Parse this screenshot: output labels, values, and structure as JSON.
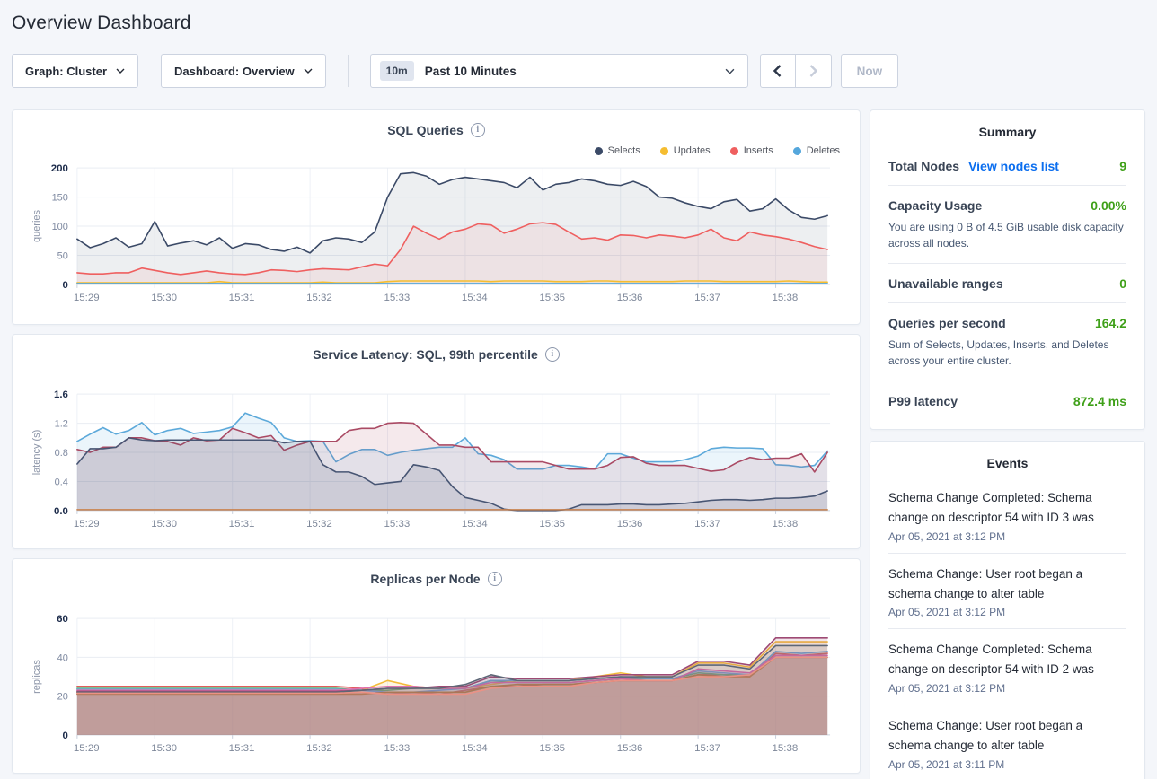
{
  "page": {
    "title": "Overview Dashboard"
  },
  "icons": {
    "info": "i"
  },
  "toolbar": {
    "graph_dropdown": "Graph: Cluster",
    "dashboard_dropdown": "Dashboard: Overview",
    "time_badge": "10m",
    "time_label": "Past 10 Minutes",
    "now_button": "Now"
  },
  "summary": {
    "title": "Summary",
    "rows": [
      {
        "label": "Total Nodes",
        "link": "View nodes list",
        "value": "9"
      },
      {
        "label": "Capacity Usage",
        "value": "0.00%",
        "desc": "You are using 0 B of 4.5 GiB usable disk capacity across all nodes."
      },
      {
        "label": "Unavailable ranges",
        "value": "0"
      },
      {
        "label": "Queries per second",
        "value": "164.2",
        "desc": "Sum of Selects, Updates, Inserts, and Deletes across your entire cluster."
      },
      {
        "label": "P99 latency",
        "value": "872.4 ms"
      }
    ]
  },
  "events": {
    "title": "Events",
    "items": [
      {
        "message": "Schema Change Completed: Schema change on descriptor 54 with ID 3 was",
        "time": "Apr 05, 2021 at 3:12 PM"
      },
      {
        "message": "Schema Change: User root began a schema change to alter table",
        "time": "Apr 05, 2021 at 3:12 PM"
      },
      {
        "message": "Schema Change Completed: Schema change on descriptor 54 with ID 2 was",
        "time": "Apr 05, 2021 at 3:12 PM"
      },
      {
        "message": "Schema Change: User root began a schema change to alter table",
        "time": "Apr 05, 2021 at 3:11 PM"
      }
    ]
  },
  "chart_data": [
    {
      "id": "sql-queries",
      "type": "area",
      "title": "SQL Queries",
      "ylabel": "queries",
      "ylim": [
        0,
        200
      ],
      "yticks": [
        {
          "v": 0,
          "label": "0",
          "bold": true
        },
        {
          "v": 50,
          "label": "50"
        },
        {
          "v": 100,
          "label": "100"
        },
        {
          "v": 150,
          "label": "150"
        },
        {
          "v": 200,
          "label": "200",
          "bold": true
        }
      ],
      "x_ticks": [
        "15:29",
        "15:30",
        "15:31",
        "15:32",
        "15:33",
        "15:34",
        "15:35",
        "15:36",
        "15:37",
        "15:38"
      ],
      "duration_s": 582,
      "dt": 10,
      "legend": true,
      "series": [
        {
          "name": "Selects",
          "color": "#3b4a67",
          "fill_opacity": 0.09,
          "values": [
            78,
            63,
            70,
            80,
            64,
            70,
            108,
            66,
            71,
            75,
            68,
            80,
            62,
            70,
            68,
            60,
            57,
            64,
            54,
            75,
            80,
            78,
            72,
            90,
            150,
            190,
            192,
            186,
            172,
            180,
            184,
            181,
            178,
            175,
            166,
            184,
            162,
            172,
            175,
            181,
            178,
            172,
            170,
            177,
            168,
            150,
            148,
            140,
            134,
            130,
            142,
            146,
            126,
            130,
            147,
            128,
            115,
            112,
            118
          ]
        },
        {
          "name": "Inserts",
          "color": "#ef5f5f",
          "fill_opacity": 0.09,
          "values": [
            20,
            18,
            18,
            20,
            20,
            28,
            24,
            20,
            17,
            20,
            23,
            20,
            18,
            17,
            20,
            25,
            24,
            22,
            25,
            27,
            26,
            25,
            30,
            35,
            32,
            60,
            100,
            88,
            78,
            90,
            95,
            104,
            102,
            88,
            95,
            104,
            106,
            103,
            90,
            78,
            80,
            76,
            85,
            84,
            80,
            85,
            83,
            80,
            85,
            95,
            80,
            75,
            90,
            85,
            82,
            78,
            72,
            65,
            60
          ]
        },
        {
          "name": "Updates",
          "color": "#f5bd30",
          "fill_opacity": 0.1,
          "values": [
            3,
            3,
            3,
            3,
            3,
            3,
            3,
            3,
            3,
            3,
            3,
            5,
            3,
            3,
            3,
            3,
            3,
            3,
            3,
            4,
            3,
            3,
            3,
            3,
            5,
            6,
            6,
            6,
            6,
            6,
            6,
            6,
            5,
            6,
            6,
            6,
            6,
            5,
            5,
            5,
            6,
            6,
            5,
            5,
            5,
            5,
            5,
            6,
            6,
            6,
            5,
            5,
            5,
            5,
            5,
            6,
            5,
            4,
            4
          ]
        },
        {
          "name": "Deletes",
          "color": "#55a7dc",
          "fill_opacity": 0.1,
          "const": [
            1.5,
            59
          ]
        }
      ],
      "legend_order": [
        "Selects",
        "Updates",
        "Inserts",
        "Deletes"
      ]
    },
    {
      "id": "service-latency",
      "type": "area",
      "title": "Service Latency: SQL, 99th percentile",
      "ylabel": "latency (s)",
      "ylim": [
        0,
        1.6
      ],
      "yticks": [
        {
          "v": 0,
          "label": "0.0",
          "bold": true
        },
        {
          "v": 0.4,
          "label": "0.4"
        },
        {
          "v": 0.8,
          "label": "0.8"
        },
        {
          "v": 1.2,
          "label": "1.2"
        },
        {
          "v": 1.6,
          "label": "1.6",
          "bold": true
        }
      ],
      "x_ticks": [
        "15:29",
        "15:30",
        "15:31",
        "15:32",
        "15:33",
        "15:34",
        "15:35",
        "15:36",
        "15:37",
        "15:38"
      ],
      "duration_s": 582,
      "dt": 10,
      "legend": false,
      "series": [
        {
          "name": "node-blue",
          "color": "#5ca9da",
          "fill_opacity": 0.12,
          "values": [
            0.95,
            1.05,
            1.14,
            1.05,
            1.1,
            1.21,
            1.04,
            1.1,
            1.13,
            1.06,
            1.08,
            1.1,
            1.15,
            1.34,
            1.27,
            1.21,
            1.0,
            0.95,
            0.96,
            0.95,
            0.67,
            0.77,
            0.84,
            0.84,
            0.76,
            0.8,
            0.83,
            0.85,
            0.87,
            0.87,
            1.0,
            0.78,
            0.76,
            0.7,
            0.57,
            0.57,
            0.57,
            0.62,
            0.62,
            0.6,
            0.57,
            0.78,
            0.78,
            0.72,
            0.67,
            0.67,
            0.67,
            0.7,
            0.75,
            0.85,
            0.87,
            0.86,
            0.86,
            0.85,
            0.63,
            0.62,
            0.6,
            0.62,
            0.82
          ]
        },
        {
          "name": "node-maroon",
          "color": "#aa4a64",
          "fill_opacity": 0.12,
          "values": [
            0.84,
            0.8,
            0.87,
            0.87,
            1.0,
            1.0,
            0.96,
            0.95,
            0.9,
            1.0,
            0.96,
            0.97,
            1.13,
            1.07,
            1.0,
            1.03,
            0.83,
            0.9,
            0.95,
            0.95,
            0.95,
            1.1,
            1.13,
            1.13,
            1.2,
            1.21,
            1.2,
            1.05,
            0.9,
            0.9,
            0.87,
            0.87,
            0.67,
            0.67,
            0.67,
            0.67,
            0.67,
            0.62,
            0.57,
            0.57,
            0.57,
            0.62,
            0.73,
            0.74,
            0.65,
            0.62,
            0.62,
            0.62,
            0.58,
            0.54,
            0.56,
            0.66,
            0.73,
            0.7,
            0.72,
            0.72,
            0.78,
            0.53,
            0.8
          ]
        },
        {
          "name": "node-navy",
          "color": "#475573",
          "fill_opacity": 0.14,
          "values": [
            0.64,
            0.85,
            0.85,
            0.87,
            1.0,
            0.97,
            0.96,
            0.97,
            0.97,
            0.97,
            0.97,
            0.97,
            0.97,
            0.97,
            0.97,
            0.97,
            0.93,
            0.95,
            0.95,
            0.63,
            0.53,
            0.53,
            0.47,
            0.36,
            0.38,
            0.4,
            0.63,
            0.6,
            0.55,
            0.33,
            0.18,
            0.14,
            0.1,
            0.02,
            0.0,
            0.0,
            0.0,
            0.0,
            0.02,
            0.08,
            0.08,
            0.08,
            0.09,
            0.09,
            0.08,
            0.08,
            0.09,
            0.1,
            0.12,
            0.14,
            0.15,
            0.15,
            0.14,
            0.15,
            0.17,
            0.17,
            0.18,
            0.2,
            0.27
          ]
        },
        {
          "name": "node-orange",
          "color": "#c9824e",
          "fill_opacity": 0,
          "const": [
            0.012,
            59
          ]
        }
      ]
    },
    {
      "id": "replicas-per-node",
      "type": "area",
      "title": "Replicas per Node",
      "ylabel": "replicas",
      "ylim": [
        0,
        60
      ],
      "yticks": [
        {
          "v": 0,
          "label": "0",
          "bold": true
        },
        {
          "v": 20,
          "label": "20"
        },
        {
          "v": 40,
          "label": "40"
        },
        {
          "v": 60,
          "label": "60",
          "bold": true
        }
      ],
      "x_ticks": [
        "15:29",
        "15:30",
        "15:31",
        "15:32",
        "15:33",
        "15:34",
        "15:35",
        "15:36",
        "15:37",
        "15:38"
      ],
      "duration_s": 582,
      "dt": 20,
      "legend": false,
      "series": [
        {
          "name": "node-1",
          "color": "#e25b5b",
          "fill_opacity": 0.14,
          "values": [
            25,
            25,
            25,
            25,
            25,
            25,
            25,
            25,
            25,
            25,
            25,
            24,
            21,
            22,
            21,
            23,
            25,
            25,
            26,
            26,
            27,
            28,
            28,
            28,
            31,
            31,
            30,
            42,
            41,
            42
          ]
        },
        {
          "name": "node-2",
          "color": "#53b176",
          "fill_opacity": 0.14,
          "values": [
            24,
            24,
            24,
            24,
            24,
            24,
            24,
            24,
            24,
            24,
            24,
            23,
            23,
            24,
            24,
            24,
            28,
            27,
            27,
            27,
            28,
            29,
            29,
            29,
            32,
            31,
            31,
            40,
            40,
            40
          ]
        },
        {
          "name": "node-3",
          "color": "#f3bb3b",
          "fill_opacity": 0.14,
          "values": [
            22,
            22,
            22,
            22,
            22,
            22,
            22,
            22,
            22,
            22,
            22,
            23,
            28,
            25,
            24,
            24,
            26,
            28,
            28,
            28,
            30,
            32,
            30,
            30,
            37,
            37,
            35,
            48,
            48,
            48
          ]
        },
        {
          "name": "node-4",
          "color": "#74a9d4",
          "fill_opacity": 0.14,
          "values": [
            23.5,
            23.5,
            23.5,
            23.5,
            23.5,
            23.5,
            23.5,
            23.5,
            23.5,
            23.5,
            23.5,
            23,
            22,
            22,
            23,
            24,
            28,
            28,
            28,
            28,
            29,
            30,
            29,
            29,
            33,
            32,
            31,
            43,
            42,
            43
          ]
        },
        {
          "name": "node-5",
          "color": "#e070ae",
          "fill_opacity": 0.14,
          "values": [
            23,
            23,
            23,
            23,
            23,
            23,
            23,
            23,
            23,
            23,
            23,
            24,
            25,
            25,
            24,
            24,
            27,
            27,
            27,
            27,
            28,
            29,
            28,
            28,
            34,
            33,
            32,
            41,
            41,
            41
          ]
        },
        {
          "name": "node-6",
          "color": "#9e4a74",
          "fill_opacity": 0.14,
          "values": [
            22.5,
            22.5,
            22.5,
            22.5,
            22.5,
            22.5,
            22.5,
            22.5,
            22.5,
            22.5,
            22.5,
            23,
            24,
            24,
            25,
            25,
            30,
            29,
            29,
            29,
            30,
            31,
            31,
            31,
            38,
            38,
            36,
            50,
            50,
            50
          ]
        },
        {
          "name": "node-7",
          "color": "#5d6676",
          "fill_opacity": 0.14,
          "values": [
            22,
            22,
            22,
            22,
            22,
            22,
            22,
            22,
            22,
            22,
            22,
            23,
            24,
            24,
            24,
            26,
            31,
            28,
            28,
            28,
            29,
            30,
            30,
            30,
            36,
            36,
            34,
            46,
            46,
            46
          ]
        },
        {
          "name": "node-8",
          "color": "#a97857",
          "fill_opacity": 0.14,
          "values": [
            21,
            21,
            21,
            21,
            21,
            21,
            21,
            21,
            21,
            21,
            21,
            21,
            22,
            22,
            22,
            22,
            25,
            26,
            26,
            26,
            27,
            28,
            28,
            28,
            31,
            30,
            30,
            40,
            40,
            40
          ]
        },
        {
          "name": "node-9",
          "color": "#ec9184",
          "fill_opacity": 0.14,
          "values": [
            21.5,
            21.5,
            21.5,
            21.5,
            21.5,
            21.5,
            21.5,
            21.5,
            21.5,
            21.5,
            21.5,
            22,
            21,
            21,
            21,
            21,
            24,
            25,
            25,
            25,
            27,
            28,
            28,
            28,
            30,
            30,
            31,
            40,
            40,
            40
          ]
        }
      ]
    }
  ]
}
